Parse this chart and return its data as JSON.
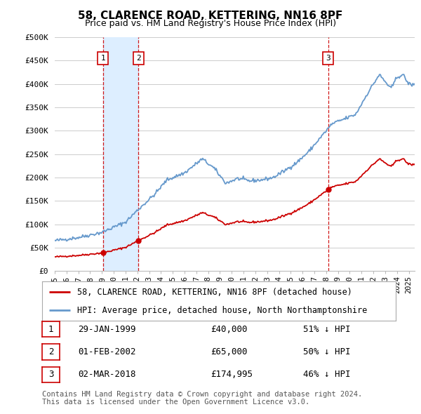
{
  "title": "58, CLARENCE ROAD, KETTERING, NN16 8PF",
  "subtitle": "Price paid vs. HM Land Registry's House Price Index (HPI)",
  "ylabel_ticks": [
    "£0",
    "£50K",
    "£100K",
    "£150K",
    "£200K",
    "£250K",
    "£300K",
    "£350K",
    "£400K",
    "£450K",
    "£500K"
  ],
  "ytick_values": [
    0,
    50000,
    100000,
    150000,
    200000,
    250000,
    300000,
    350000,
    400000,
    450000,
    500000
  ],
  "xlim_start": 1995.0,
  "xlim_end": 2025.5,
  "ylim_min": 0,
  "ylim_max": 500000,
  "sales": [
    {
      "date": 1999.08,
      "price": 40000,
      "label": "1"
    },
    {
      "date": 2002.09,
      "price": 65000,
      "label": "2"
    },
    {
      "date": 2018.17,
      "price": 174995,
      "label": "3"
    }
  ],
  "sale_color": "#cc0000",
  "hpi_color": "#6699cc",
  "vline_color": "#cc0000",
  "shade_color": "#ddeeff",
  "legend_sale_label": "58, CLARENCE ROAD, KETTERING, NN16 8PF (detached house)",
  "legend_hpi_label": "HPI: Average price, detached house, North Northamptonshire",
  "table_rows": [
    {
      "num": "1",
      "date": "29-JAN-1999",
      "price": "£40,000",
      "hpi": "51% ↓ HPI"
    },
    {
      "num": "2",
      "date": "01-FEB-2002",
      "price": "£65,000",
      "hpi": "50% ↓ HPI"
    },
    {
      "num": "3",
      "date": "02-MAR-2018",
      "price": "£174,995",
      "hpi": "46% ↓ HPI"
    }
  ],
  "footnote1": "Contains HM Land Registry data © Crown copyright and database right 2024.",
  "footnote2": "This data is licensed under the Open Government Licence v3.0.",
  "background_color": "#ffffff",
  "plot_bg_color": "#ffffff",
  "grid_color": "#cccccc"
}
